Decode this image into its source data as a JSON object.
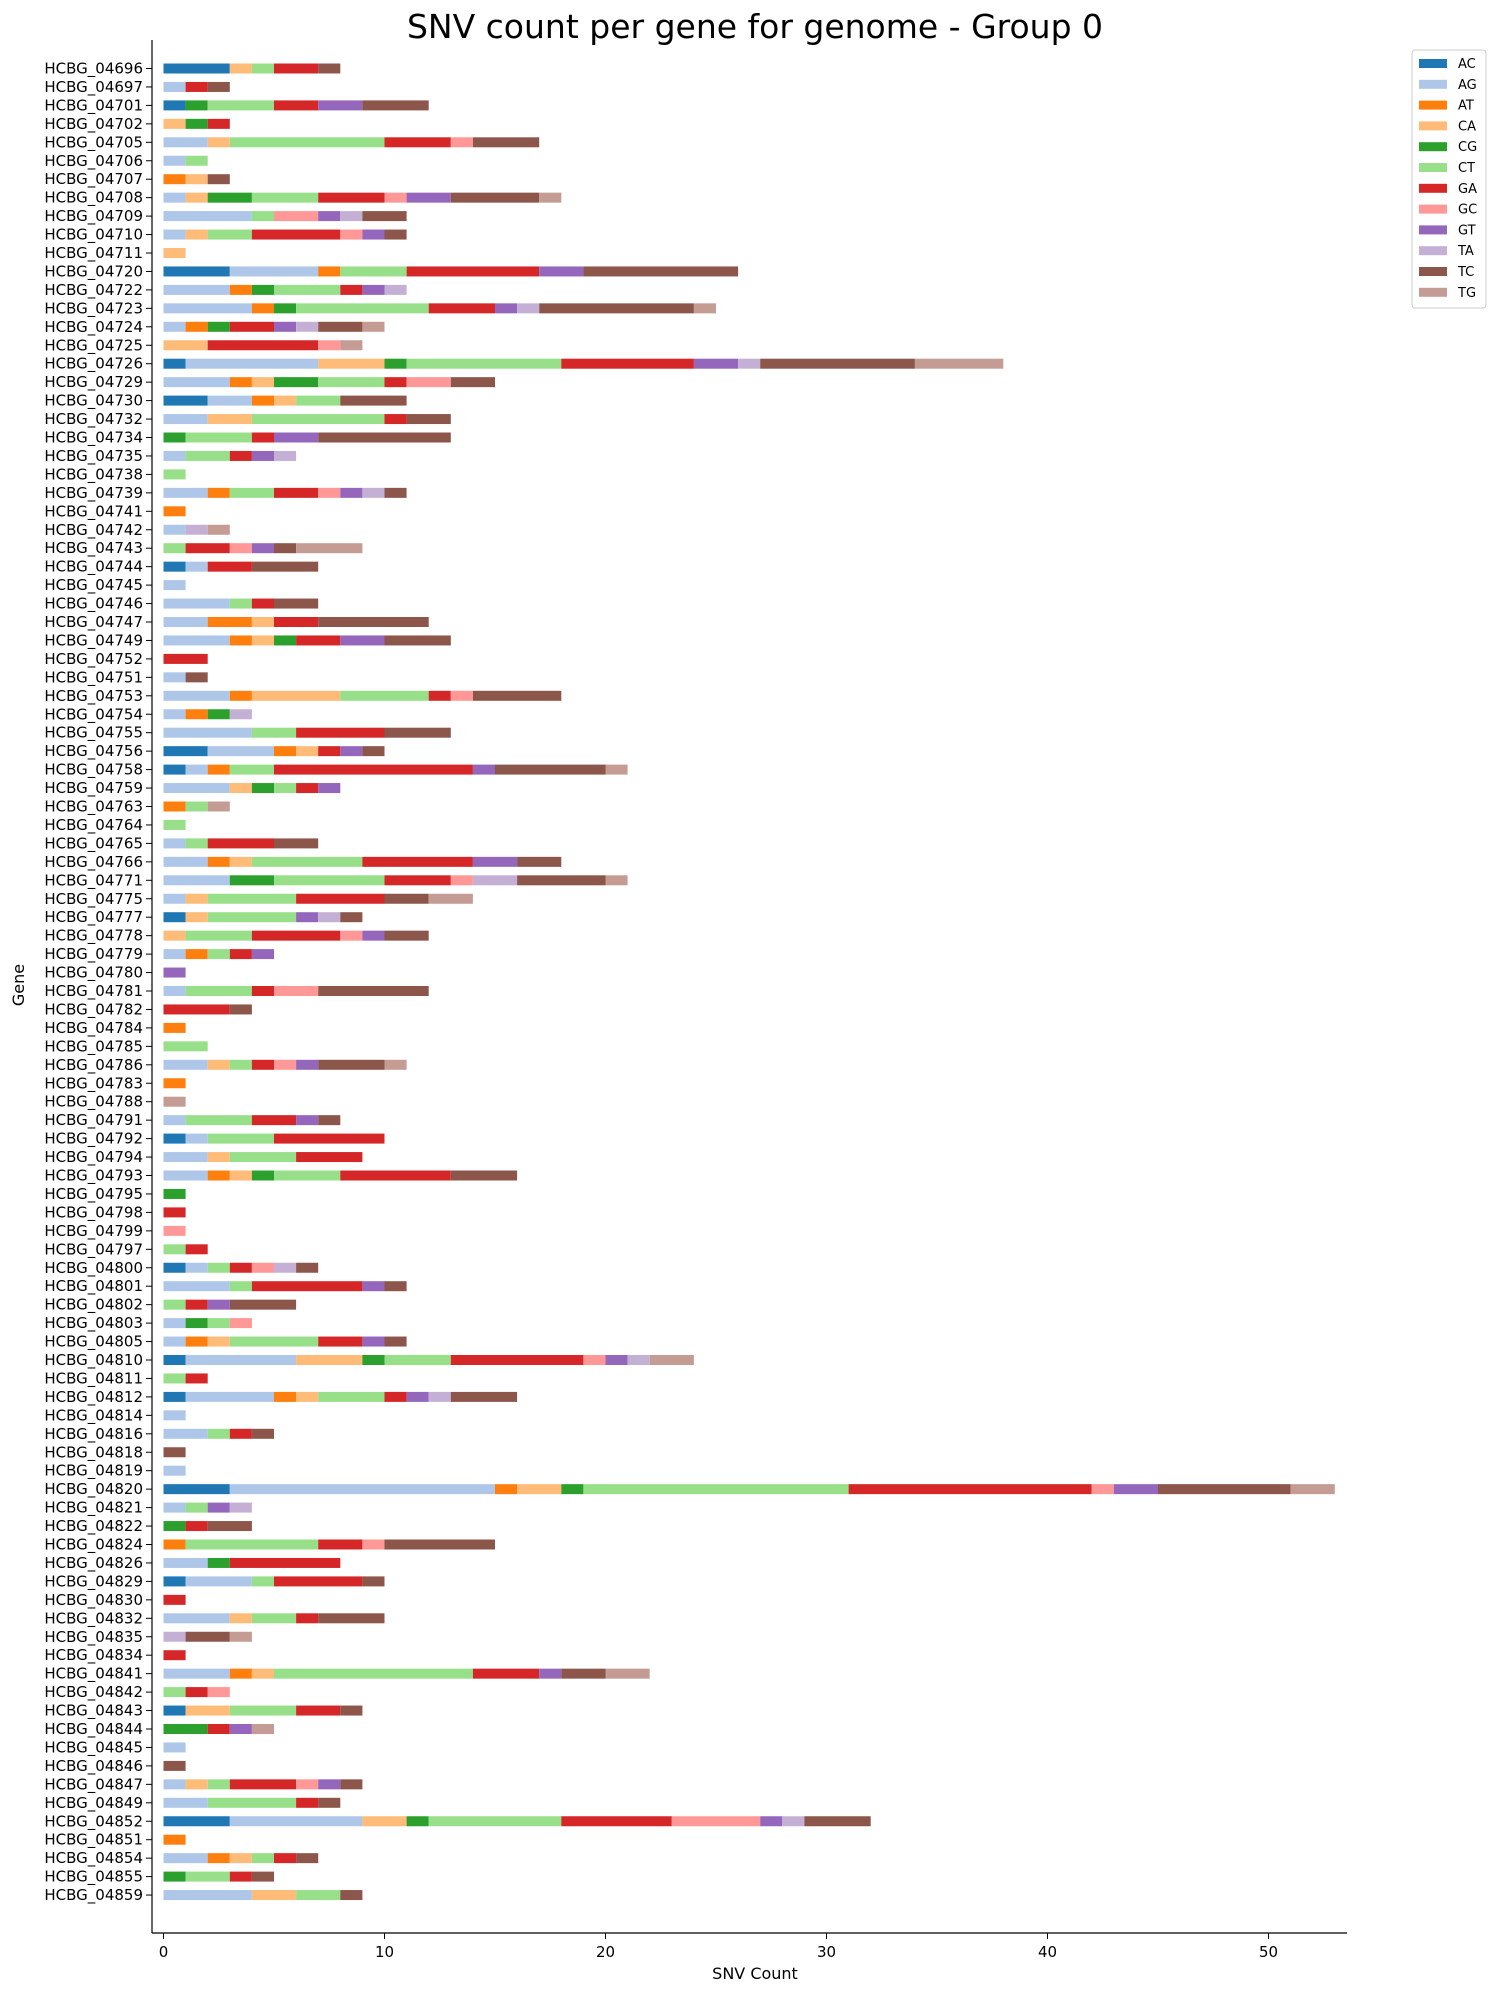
{
  "chart_data": {
    "type": "bar",
    "orientation": "horizontal",
    "stacked": true,
    "title": "SNV count per gene for genome - Group 0",
    "xlabel": "SNV Count",
    "ylabel": "Gene",
    "xlim": [
      0,
      53.5
    ],
    "xticks": [
      0,
      10,
      20,
      30,
      40,
      50
    ],
    "grid": false,
    "legend_position": "top-right",
    "series_keys": [
      "AC",
      "AG",
      "AT",
      "CA",
      "CG",
      "CT",
      "GA",
      "GC",
      "GT",
      "TA",
      "TC",
      "TG"
    ],
    "colors": {
      "AC": "#1f77b4",
      "AG": "#aec7e8",
      "AT": "#ff7f0e",
      "CA": "#ffbb78",
      "CG": "#2ca02c",
      "CT": "#98df8a",
      "GA": "#d62728",
      "GC": "#ff9896",
      "GT": "#9467bd",
      "TA": "#c5b0d5",
      "TC": "#8c564b",
      "TG": "#c49c94"
    },
    "rows": [
      {
        "gene": "HCBG_04696",
        "c": {
          "AC": 3,
          "CA": 1,
          "CT": 1,
          "GA": 2,
          "TC": 1
        }
      },
      {
        "gene": "HCBG_04697",
        "c": {
          "AG": 1,
          "GA": 1,
          "TC": 1
        }
      },
      {
        "gene": "HCBG_04701",
        "c": {
          "AC": 1,
          "CG": 1,
          "CT": 3,
          "GA": 2,
          "GT": 2,
          "TC": 3
        }
      },
      {
        "gene": "HCBG_04702",
        "c": {
          "CA": 1,
          "CG": 1,
          "GA": 1
        }
      },
      {
        "gene": "HCBG_04705",
        "c": {
          "AG": 2,
          "CA": 1,
          "CT": 7,
          "GA": 3,
          "GC": 1,
          "TC": 3
        }
      },
      {
        "gene": "HCBG_04706",
        "c": {
          "AG": 1,
          "CT": 1
        }
      },
      {
        "gene": "HCBG_04707",
        "c": {
          "AT": 1,
          "CA": 1,
          "TC": 1
        }
      },
      {
        "gene": "HCBG_04708",
        "c": {
          "AG": 1,
          "CA": 1,
          "CG": 2,
          "CT": 3,
          "GA": 3,
          "GC": 1,
          "GT": 2,
          "TC": 4,
          "TG": 1
        }
      },
      {
        "gene": "HCBG_04709",
        "c": {
          "AG": 4,
          "CT": 1,
          "GC": 2,
          "GT": 1,
          "TA": 1,
          "TC": 2
        }
      },
      {
        "gene": "HCBG_04710",
        "c": {
          "AG": 1,
          "CA": 1,
          "CT": 2,
          "GA": 4,
          "GC": 1,
          "GT": 1,
          "TC": 1
        }
      },
      {
        "gene": "HCBG_04711",
        "c": {
          "CA": 1
        }
      },
      {
        "gene": "HCBG_04720",
        "c": {
          "AC": 3,
          "AG": 4,
          "AT": 1,
          "CT": 3,
          "GA": 6,
          "GT": 2,
          "TC": 7
        }
      },
      {
        "gene": "HCBG_04722",
        "c": {
          "AG": 3,
          "AT": 1,
          "CG": 1,
          "CT": 3,
          "GA": 1,
          "GT": 1,
          "TA": 1
        }
      },
      {
        "gene": "HCBG_04723",
        "c": {
          "AG": 4,
          "AT": 1,
          "CG": 1,
          "CT": 6,
          "GA": 3,
          "GT": 1,
          "TA": 1,
          "TC": 7,
          "TG": 1
        }
      },
      {
        "gene": "HCBG_04724",
        "c": {
          "AG": 1,
          "AT": 1,
          "CG": 1,
          "GA": 2,
          "GT": 1,
          "TA": 1,
          "TC": 2,
          "TG": 1
        }
      },
      {
        "gene": "HCBG_04725",
        "c": {
          "CA": 2,
          "GA": 5,
          "GC": 1,
          "TG": 1
        }
      },
      {
        "gene": "HCBG_04726",
        "c": {
          "AC": 1,
          "AG": 6,
          "CA": 3,
          "CG": 1,
          "CT": 7,
          "GA": 6,
          "GT": 2,
          "TA": 1,
          "TC": 7,
          "TG": 4
        }
      },
      {
        "gene": "HCBG_04729",
        "c": {
          "AG": 3,
          "AT": 1,
          "CA": 1,
          "CG": 2,
          "CT": 3,
          "GA": 1,
          "GC": 2,
          "TC": 2
        }
      },
      {
        "gene": "HCBG_04730",
        "c": {
          "AC": 2,
          "AG": 2,
          "AT": 1,
          "CA": 1,
          "CT": 2,
          "TC": 3
        }
      },
      {
        "gene": "HCBG_04732",
        "c": {
          "AG": 2,
          "CA": 2,
          "CT": 6,
          "GA": 1,
          "TC": 2
        }
      },
      {
        "gene": "HCBG_04734",
        "c": {
          "CG": 1,
          "CT": 3,
          "GA": 1,
          "GT": 2,
          "TC": 6
        }
      },
      {
        "gene": "HCBG_04735",
        "c": {
          "AG": 1,
          "CT": 2,
          "GA": 1,
          "GT": 1,
          "TA": 1
        }
      },
      {
        "gene": "HCBG_04738",
        "c": {
          "CT": 1
        }
      },
      {
        "gene": "HCBG_04739",
        "c": {
          "AG": 2,
          "AT": 1,
          "CT": 2,
          "GA": 2,
          "GC": 1,
          "GT": 1,
          "TA": 1,
          "TC": 1
        }
      },
      {
        "gene": "HCBG_04741",
        "c": {
          "AT": 1
        }
      },
      {
        "gene": "HCBG_04742",
        "c": {
          "AG": 1,
          "TA": 1,
          "TG": 1
        }
      },
      {
        "gene": "HCBG_04743",
        "c": {
          "CT": 1,
          "GA": 2,
          "GC": 1,
          "GT": 1,
          "TC": 1,
          "TG": 3
        }
      },
      {
        "gene": "HCBG_04744",
        "c": {
          "AC": 1,
          "AG": 1,
          "GA": 2,
          "TC": 3
        }
      },
      {
        "gene": "HCBG_04745",
        "c": {
          "AG": 1
        }
      },
      {
        "gene": "HCBG_04746",
        "c": {
          "AG": 3,
          "CT": 1,
          "GA": 1,
          "TC": 2
        }
      },
      {
        "gene": "HCBG_04747",
        "c": {
          "AG": 2,
          "AT": 2,
          "CA": 1,
          "GA": 2,
          "TC": 5
        }
      },
      {
        "gene": "HCBG_04749",
        "c": {
          "AG": 3,
          "AT": 1,
          "CA": 1,
          "CG": 1,
          "GA": 2,
          "GT": 2,
          "TC": 3
        }
      },
      {
        "gene": "HCBG_04752",
        "c": {
          "GA": 2
        }
      },
      {
        "gene": "HCBG_04751",
        "c": {
          "AG": 1,
          "TC": 1
        }
      },
      {
        "gene": "HCBG_04753",
        "c": {
          "AG": 3,
          "AT": 1,
          "CA": 4,
          "CT": 4,
          "GA": 1,
          "GC": 1,
          "TC": 4
        }
      },
      {
        "gene": "HCBG_04754",
        "c": {
          "AG": 1,
          "AT": 1,
          "CG": 1,
          "TA": 1
        }
      },
      {
        "gene": "HCBG_04755",
        "c": {
          "AG": 4,
          "CT": 2,
          "GA": 4,
          "TC": 3
        }
      },
      {
        "gene": "HCBG_04756",
        "c": {
          "AC": 2,
          "AG": 3,
          "AT": 1,
          "CA": 1,
          "GA": 1,
          "GT": 1,
          "TC": 1
        }
      },
      {
        "gene": "HCBG_04758",
        "c": {
          "AC": 1,
          "AG": 1,
          "AT": 1,
          "CT": 2,
          "GA": 9,
          "GT": 1,
          "TC": 5,
          "TG": 1
        }
      },
      {
        "gene": "HCBG_04759",
        "c": {
          "AG": 3,
          "CA": 1,
          "CG": 1,
          "CT": 1,
          "GA": 1,
          "GT": 1
        }
      },
      {
        "gene": "HCBG_04763",
        "c": {
          "AT": 1,
          "CT": 1,
          "TG": 1
        }
      },
      {
        "gene": "HCBG_04764",
        "c": {
          "CT": 1
        }
      },
      {
        "gene": "HCBG_04765",
        "c": {
          "AG": 1,
          "CT": 1,
          "GA": 3,
          "TC": 2
        }
      },
      {
        "gene": "HCBG_04766",
        "c": {
          "AG": 2,
          "AT": 1,
          "CA": 1,
          "CT": 5,
          "GA": 5,
          "GT": 2,
          "TC": 2
        }
      },
      {
        "gene": "HCBG_04771",
        "c": {
          "AG": 3,
          "CG": 2,
          "CT": 5,
          "GA": 3,
          "GC": 1,
          "TA": 2,
          "TC": 4,
          "TG": 1
        }
      },
      {
        "gene": "HCBG_04775",
        "c": {
          "AG": 1,
          "CA": 1,
          "CT": 4,
          "GA": 4,
          "TC": 2,
          "TG": 2
        }
      },
      {
        "gene": "HCBG_04777",
        "c": {
          "AC": 1,
          "CA": 1,
          "CT": 4,
          "GT": 1,
          "TA": 1,
          "TC": 1
        }
      },
      {
        "gene": "HCBG_04778",
        "c": {
          "CA": 1,
          "CT": 3,
          "GA": 4,
          "GC": 1,
          "GT": 1,
          "TC": 2
        }
      },
      {
        "gene": "HCBG_04779",
        "c": {
          "AG": 1,
          "AT": 1,
          "CT": 1,
          "GA": 1,
          "GT": 1
        }
      },
      {
        "gene": "HCBG_04780",
        "c": {
          "GT": 1
        }
      },
      {
        "gene": "HCBG_04781",
        "c": {
          "AG": 1,
          "CT": 3,
          "GA": 1,
          "GC": 2,
          "TC": 5
        }
      },
      {
        "gene": "HCBG_04782",
        "c": {
          "GA": 3,
          "TC": 1
        }
      },
      {
        "gene": "HCBG_04784",
        "c": {
          "AT": 1
        }
      },
      {
        "gene": "HCBG_04785",
        "c": {
          "CT": 2
        }
      },
      {
        "gene": "HCBG_04786",
        "c": {
          "AG": 2,
          "CA": 1,
          "CT": 1,
          "GA": 1,
          "GC": 1,
          "GT": 1,
          "TC": 3,
          "TG": 1
        }
      },
      {
        "gene": "HCBG_04783",
        "c": {
          "AT": 1
        }
      },
      {
        "gene": "HCBG_04788",
        "c": {
          "TG": 1
        }
      },
      {
        "gene": "HCBG_04791",
        "c": {
          "AG": 1,
          "CT": 3,
          "GA": 2,
          "GT": 1,
          "TC": 1
        }
      },
      {
        "gene": "HCBG_04792",
        "c": {
          "AC": 1,
          "AG": 1,
          "CT": 3,
          "GA": 5
        }
      },
      {
        "gene": "HCBG_04794",
        "c": {
          "AG": 2,
          "CA": 1,
          "CT": 3,
          "GA": 3
        }
      },
      {
        "gene": "HCBG_04793",
        "c": {
          "AG": 2,
          "AT": 1,
          "CA": 1,
          "CG": 1,
          "CT": 3,
          "GA": 5,
          "TC": 3
        }
      },
      {
        "gene": "HCBG_04795",
        "c": {
          "CG": 1
        }
      },
      {
        "gene": "HCBG_04798",
        "c": {
          "GA": 1
        }
      },
      {
        "gene": "HCBG_04799",
        "c": {
          "GC": 1
        }
      },
      {
        "gene": "HCBG_04797",
        "c": {
          "CT": 1,
          "GA": 1
        }
      },
      {
        "gene": "HCBG_04800",
        "c": {
          "AC": 1,
          "AG": 1,
          "CT": 1,
          "GA": 1,
          "GC": 1,
          "TA": 1,
          "TC": 1
        }
      },
      {
        "gene": "HCBG_04801",
        "c": {
          "AG": 3,
          "CT": 1,
          "GA": 5,
          "GT": 1,
          "TC": 1
        }
      },
      {
        "gene": "HCBG_04802",
        "c": {
          "CT": 1,
          "GA": 1,
          "GT": 1,
          "TC": 3
        }
      },
      {
        "gene": "HCBG_04803",
        "c": {
          "AG": 1,
          "CG": 1,
          "CT": 1,
          "GC": 1
        }
      },
      {
        "gene": "HCBG_04805",
        "c": {
          "AG": 1,
          "AT": 1,
          "CA": 1,
          "CT": 4,
          "GA": 2,
          "GT": 1,
          "TC": 1
        }
      },
      {
        "gene": "HCBG_04810",
        "c": {
          "AC": 1,
          "AG": 5,
          "CA": 3,
          "CG": 1,
          "CT": 3,
          "GA": 6,
          "GC": 1,
          "GT": 1,
          "TA": 1,
          "TG": 2
        }
      },
      {
        "gene": "HCBG_04811",
        "c": {
          "CT": 1,
          "GA": 1
        }
      },
      {
        "gene": "HCBG_04812",
        "c": {
          "AC": 1,
          "AG": 4,
          "AT": 1,
          "CA": 1,
          "CT": 3,
          "GA": 1,
          "GT": 1,
          "TA": 1,
          "TC": 3
        }
      },
      {
        "gene": "HCBG_04814",
        "c": {
          "AG": 1
        }
      },
      {
        "gene": "HCBG_04816",
        "c": {
          "AG": 2,
          "CT": 1,
          "GA": 1,
          "TC": 1
        }
      },
      {
        "gene": "HCBG_04818",
        "c": {
          "TC": 1
        }
      },
      {
        "gene": "HCBG_04819",
        "c": {
          "AG": 1
        }
      },
      {
        "gene": "HCBG_04820",
        "c": {
          "AC": 3,
          "AG": 12,
          "AT": 1,
          "CA": 2,
          "CG": 1,
          "CT": 12,
          "GA": 11,
          "GC": 1,
          "GT": 2,
          "TC": 6,
          "TG": 2
        }
      },
      {
        "gene": "HCBG_04821",
        "c": {
          "AG": 1,
          "CT": 1,
          "GT": 1,
          "TA": 1
        }
      },
      {
        "gene": "HCBG_04822",
        "c": {
          "CG": 1,
          "GA": 1,
          "TC": 2
        }
      },
      {
        "gene": "HCBG_04824",
        "c": {
          "AT": 1,
          "CT": 6,
          "GA": 2,
          "GC": 1,
          "TC": 5
        }
      },
      {
        "gene": "HCBG_04826",
        "c": {
          "AG": 2,
          "CG": 1,
          "GA": 5
        }
      },
      {
        "gene": "HCBG_04829",
        "c": {
          "AC": 1,
          "AG": 3,
          "CT": 1,
          "GA": 4,
          "TC": 1
        }
      },
      {
        "gene": "HCBG_04830",
        "c": {
          "GA": 1
        }
      },
      {
        "gene": "HCBG_04832",
        "c": {
          "AG": 3,
          "CA": 1,
          "CT": 2,
          "GA": 1,
          "TC": 3
        }
      },
      {
        "gene": "HCBG_04835",
        "c": {
          "TA": 1,
          "TC": 2,
          "TG": 1
        }
      },
      {
        "gene": "HCBG_04834",
        "c": {
          "GA": 1
        }
      },
      {
        "gene": "HCBG_04841",
        "c": {
          "AG": 3,
          "AT": 1,
          "CA": 1,
          "CT": 9,
          "GA": 3,
          "GT": 1,
          "TC": 2,
          "TG": 2
        }
      },
      {
        "gene": "HCBG_04842",
        "c": {
          "CT": 1,
          "GA": 1,
          "GC": 1
        }
      },
      {
        "gene": "HCBG_04843",
        "c": {
          "AC": 1,
          "CA": 2,
          "CT": 3,
          "GA": 2,
          "TC": 1
        }
      },
      {
        "gene": "HCBG_04844",
        "c": {
          "CG": 2,
          "GA": 1,
          "GT": 1,
          "TG": 1
        }
      },
      {
        "gene": "HCBG_04845",
        "c": {
          "AG": 1
        }
      },
      {
        "gene": "HCBG_04846",
        "c": {
          "TC": 1
        }
      },
      {
        "gene": "HCBG_04847",
        "c": {
          "AG": 1,
          "CA": 1,
          "CT": 1,
          "GA": 3,
          "GC": 1,
          "GT": 1,
          "TC": 1
        }
      },
      {
        "gene": "HCBG_04849",
        "c": {
          "AG": 2,
          "CT": 4,
          "GA": 1,
          "TC": 1
        }
      },
      {
        "gene": "HCBG_04852",
        "c": {
          "AC": 3,
          "AG": 6,
          "CA": 2,
          "CG": 1,
          "CT": 6,
          "GA": 5,
          "GC": 4,
          "GT": 1,
          "TA": 1,
          "TC": 3
        }
      },
      {
        "gene": "HCBG_04851",
        "c": {
          "AT": 1
        }
      },
      {
        "gene": "HCBG_04854",
        "c": {
          "AG": 2,
          "AT": 1,
          "CA": 1,
          "CT": 1,
          "GA": 1,
          "TC": 1
        }
      },
      {
        "gene": "HCBG_04855",
        "c": {
          "CG": 1,
          "CT": 2,
          "GA": 1,
          "TC": 1
        }
      },
      {
        "gene": "HCBG_04859",
        "c": {
          "AG": 4,
          "CA": 2,
          "CT": 2,
          "TC": 1
        }
      }
    ]
  }
}
